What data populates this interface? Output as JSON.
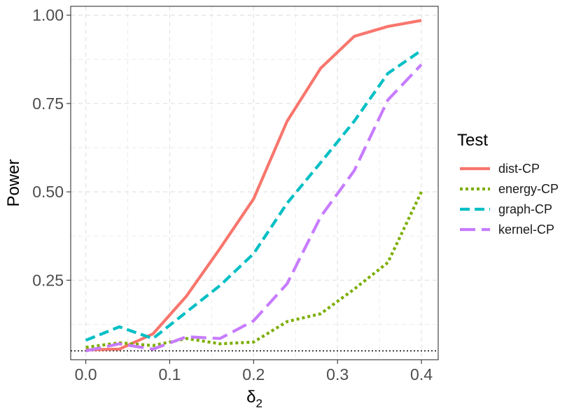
{
  "chart_data": {
    "type": "line",
    "xlabel": "δ",
    "xlabel_sub": "2",
    "ylabel": "Power",
    "xlim": [
      -0.018,
      0.42
    ],
    "ylim": [
      0.025,
      1.025
    ],
    "x_ticks": [
      0.0,
      0.1,
      0.2,
      0.3,
      0.4
    ],
    "x_tick_labels": [
      "0.0",
      "0.1",
      "0.2",
      "0.3",
      "0.4"
    ],
    "y_ticks": [
      0.25,
      0.5,
      0.75,
      1.0
    ],
    "y_tick_labels": [
      "0.25",
      "0.50",
      "0.75",
      "1.00"
    ],
    "grid": true,
    "reference_line": {
      "y": 0.05,
      "style": "dotted",
      "color": "#000000"
    },
    "legend": {
      "title": "Test",
      "placement": "right"
    },
    "x": [
      0.0,
      0.04,
      0.08,
      0.12,
      0.16,
      0.2,
      0.24,
      0.28,
      0.32,
      0.36,
      0.4
    ],
    "series": [
      {
        "name": "dist-CP",
        "color": "#F8766D",
        "dash": "solid",
        "values": [
          0.053,
          0.055,
          0.098,
          0.205,
          0.34,
          0.48,
          0.7,
          0.85,
          0.94,
          0.968,
          0.985
        ]
      },
      {
        "name": "energy-CP",
        "color": "#7CAE00",
        "dash": "dotted",
        "values": [
          0.06,
          0.073,
          0.065,
          0.085,
          0.07,
          0.075,
          0.133,
          0.155,
          0.225,
          0.3,
          0.5
        ]
      },
      {
        "name": "graph-CP",
        "color": "#00BFC4",
        "dash": "dashed",
        "values": [
          0.08,
          0.118,
          0.085,
          0.16,
          0.235,
          0.325,
          0.468,
          0.583,
          0.7,
          0.835,
          0.9
        ]
      },
      {
        "name": "kernel-CP",
        "color": "#C77CFF",
        "dash": "longdash",
        "values": [
          0.05,
          0.07,
          0.055,
          0.09,
          0.085,
          0.135,
          0.24,
          0.43,
          0.56,
          0.76,
          0.86
        ]
      }
    ]
  }
}
